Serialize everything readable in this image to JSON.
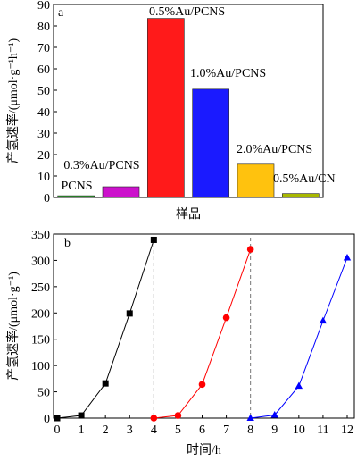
{
  "chart_data": [
    {
      "panel": "a",
      "type": "bar",
      "ylabel": "产氢速率/(μmol·g⁻¹h⁻¹)",
      "xlabel": "样品",
      "ylim": [
        0,
        90
      ],
      "yticks": [
        0,
        10,
        20,
        30,
        40,
        50,
        60,
        70,
        80,
        90
      ],
      "categories": [
        "PCNS",
        "0.3%Au/PCNS",
        "0.5%Au/PCNS",
        "1.0%Au/PCNS",
        "2.0%Au/PCNS",
        "0.5%Au/CN"
      ],
      "values": [
        0.8,
        5.0,
        83.5,
        50.5,
        15.5,
        1.8
      ],
      "colors": [
        "#22b022",
        "#cc11cc",
        "#ff1a1a",
        "#1a1aff",
        "#ffc20e",
        "#a8b800"
      ]
    },
    {
      "panel": "b",
      "type": "line",
      "ylabel": "产氢速率/(μmol·g⁻¹)",
      "xlabel": "时间/h",
      "xlim": [
        0,
        12
      ],
      "ylim": [
        0,
        350
      ],
      "xticks": [
        0,
        1,
        2,
        3,
        4,
        5,
        6,
        7,
        8,
        9,
        10,
        11,
        12
      ],
      "yticks": [
        0,
        50,
        100,
        150,
        200,
        250,
        300,
        350
      ],
      "vlines": [
        4,
        8
      ],
      "series": [
        {
          "color": "#000000",
          "marker": "square",
          "x": [
            0,
            1,
            2,
            3,
            4
          ],
          "y": [
            0,
            5,
            66,
            199,
            339
          ]
        },
        {
          "color": "#ff0000",
          "marker": "circle",
          "x": [
            4,
            5,
            6,
            7,
            8
          ],
          "y": [
            0,
            5,
            64,
            191,
            321
          ]
        },
        {
          "color": "#0000ff",
          "marker": "triangle",
          "x": [
            8,
            9,
            10,
            11,
            12
          ],
          "y": [
            0,
            6,
            61,
            185,
            305
          ]
        }
      ]
    }
  ]
}
